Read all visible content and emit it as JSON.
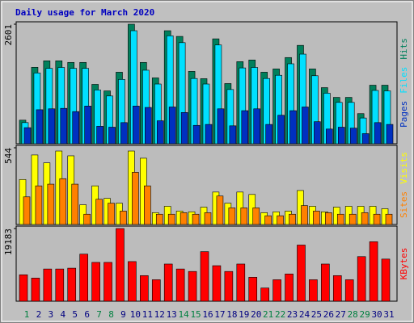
{
  "chart_data": [
    {
      "type": "bar",
      "title": "Daily usage for March 2020",
      "categories": [
        "1",
        "2",
        "3",
        "4",
        "5",
        "6",
        "7",
        "8",
        "9",
        "10",
        "11",
        "12",
        "13",
        "14",
        "15",
        "16",
        "17",
        "18",
        "19",
        "20",
        "21",
        "22",
        "23",
        "24",
        "25",
        "26",
        "27",
        "28",
        "29",
        "30",
        "31"
      ],
      "category_colors": [
        "#008040",
        "#000080",
        "#000080",
        "#000080",
        "#000080",
        "#000080",
        "#008040",
        "#008040",
        "#000080",
        "#000080",
        "#000080",
        "#000080",
        "#000080",
        "#008040",
        "#008040",
        "#000080",
        "#000080",
        "#000080",
        "#000080",
        "#000080",
        "#008040",
        "#008040",
        "#000080",
        "#000080",
        "#000080",
        "#000080",
        "#000080",
        "#008040",
        "#008040",
        "#000080",
        "#000080"
      ],
      "ylim": [
        0,
        2601
      ],
      "yticks": [
        2601
      ],
      "series": [
        {
          "name": "Hits",
          "color": "#00805c",
          "values": [
            513,
            1664,
            1805,
            1805,
            1770,
            1770,
            1292,
            1150,
            1557,
            2601,
            1770,
            1433,
            2460,
            2336,
            1575,
            1416,
            2283,
            1310,
            1787,
            1823,
            1557,
            1628,
            1876,
            2141,
            1628,
            1221,
            1009,
            1009,
            655,
            1274,
            1274
          ]
        },
        {
          "name": "Files",
          "color": "#00e0ff",
          "values": [
            460,
            1540,
            1640,
            1660,
            1640,
            1640,
            1170,
            1040,
            1400,
            2460,
            1600,
            1300,
            2350,
            2200,
            1420,
            1300,
            2150,
            1180,
            1650,
            1660,
            1420,
            1490,
            1740,
            1950,
            1480,
            1100,
            900,
            900,
            560,
            1160,
            1150
          ]
        },
        {
          "name": "Pages",
          "color": "#0030c0",
          "values": [
            350,
            740,
            760,
            770,
            700,
            820,
            380,
            360,
            460,
            820,
            790,
            500,
            800,
            680,
            400,
            420,
            760,
            390,
            720,
            760,
            420,
            620,
            720,
            800,
            480,
            320,
            360,
            340,
            220,
            460,
            420
          ]
        }
      ]
    },
    {
      "type": "bar",
      "ylim": [
        0,
        544
      ],
      "yticks": [
        544
      ],
      "series": [
        {
          "name": "Visits",
          "color": "#ffff00",
          "values": [
            319,
            493,
            437,
            521,
            487,
            140,
            274,
            185,
            151,
            521,
            470,
            84,
            129,
            95,
            90,
            123,
            230,
            151,
            230,
            213,
            84,
            90,
            95,
            241,
            129,
            90,
            123,
            129,
            129,
            129,
            112
          ]
        },
        {
          "name": "Sites",
          "color": "#ff8000",
          "values": [
            196,
            274,
            286,
            325,
            286,
            73,
            179,
            151,
            95,
            370,
            274,
            73,
            73,
            84,
            73,
            84,
            202,
            118,
            118,
            118,
            62,
            62,
            73,
            134,
            95,
            84,
            73,
            73,
            84,
            73,
            73
          ]
        }
      ]
    },
    {
      "type": "bar",
      "ylim": [
        0,
        19183
      ],
      "yticks": [
        19183
      ],
      "series": [
        {
          "name": "KBytes",
          "color": "#ff0000",
          "values": [
            6976,
            6104,
            8502,
            8502,
            8720,
            12426,
            10246,
            10246,
            19183,
            10464,
            6758,
            5668,
            9810,
            8502,
            7848,
            13080,
            9374,
            7848,
            9810,
            6322,
            3488,
            5668,
            7194,
            14824,
            5668,
            9810,
            6758,
            5668,
            11772,
            15696,
            11118
          ]
        }
      ]
    }
  ]
}
